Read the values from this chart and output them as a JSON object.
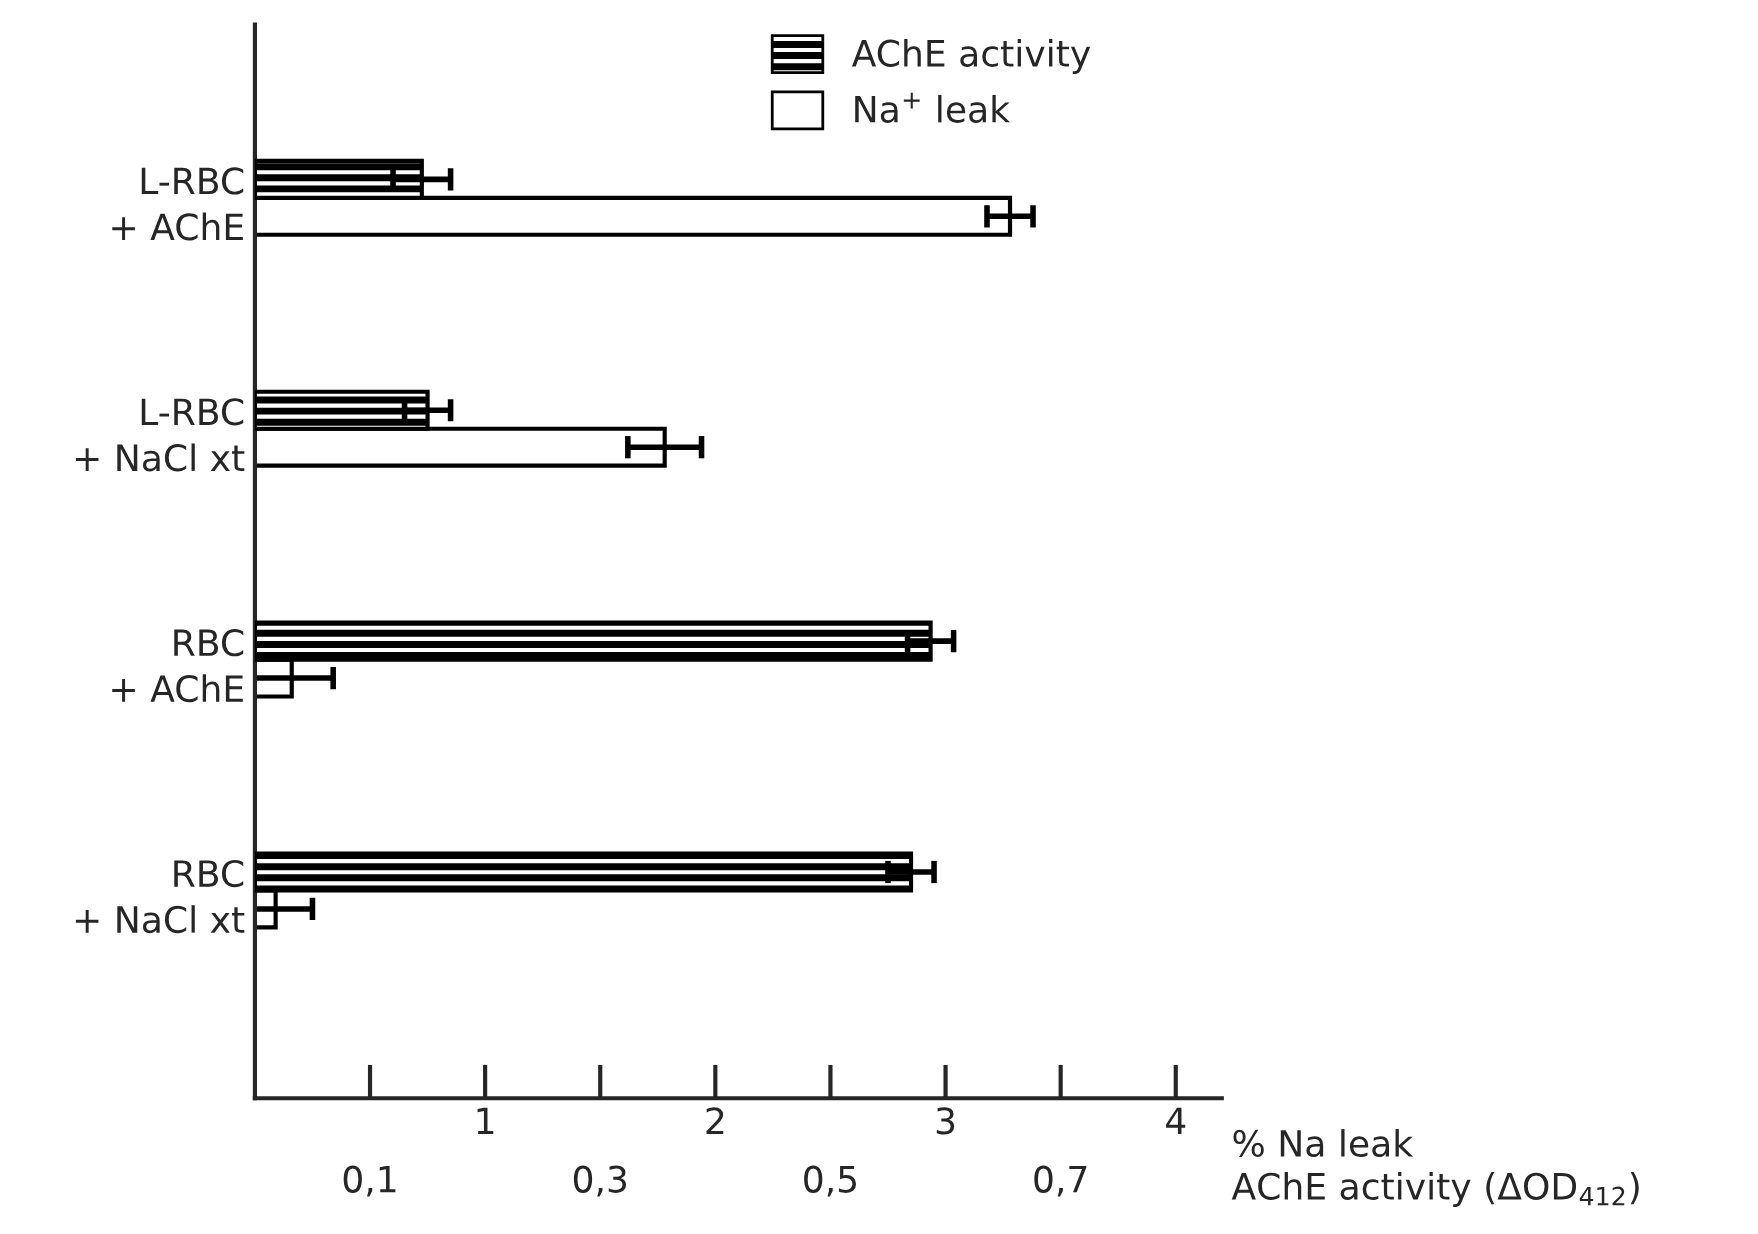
{
  "chart_data": {
    "type": "bar",
    "orientation": "horizontal",
    "categories": [
      "L-RBC\n+ AChE",
      "L-RBC\n+ NaCl xt",
      "RBC\n+ AChE",
      "RBC\n+ NaCl xt"
    ],
    "series": [
      {
        "name": "AChE activity",
        "color": "#000000",
        "axis": "x2",
        "values": [
          0.145,
          0.15,
          0.587,
          0.57
        ],
        "errors": [
          0.025,
          0.02,
          0.02,
          0.02
        ]
      },
      {
        "name": "Na$^{+}$ leak",
        "color": "#ffffff",
        "values": [
          3.28,
          1.78,
          0.16,
          0.09
        ],
        "errors": [
          0.1,
          0.16,
          0.18,
          0.16
        ]
      }
    ],
    "xlabel": "% Na leak",
    "x2label": "AChE activity (ΔOD$_{412}$)",
    "xlim": [
      0,
      4.2
    ],
    "xticks": [
      1,
      2,
      3,
      4
    ],
    "x2lim": [
      0,
      0.84
    ],
    "x2ticks": [
      {
        "value": 0.1,
        "label": "0,1"
      },
      {
        "value": 0.3,
        "label": "0,3"
      },
      {
        "value": 0.5,
        "label": "0,5"
      },
      {
        "value": 0.7,
        "label": "0,7"
      }
    ],
    "legend": "top",
    "grid": false
  }
}
